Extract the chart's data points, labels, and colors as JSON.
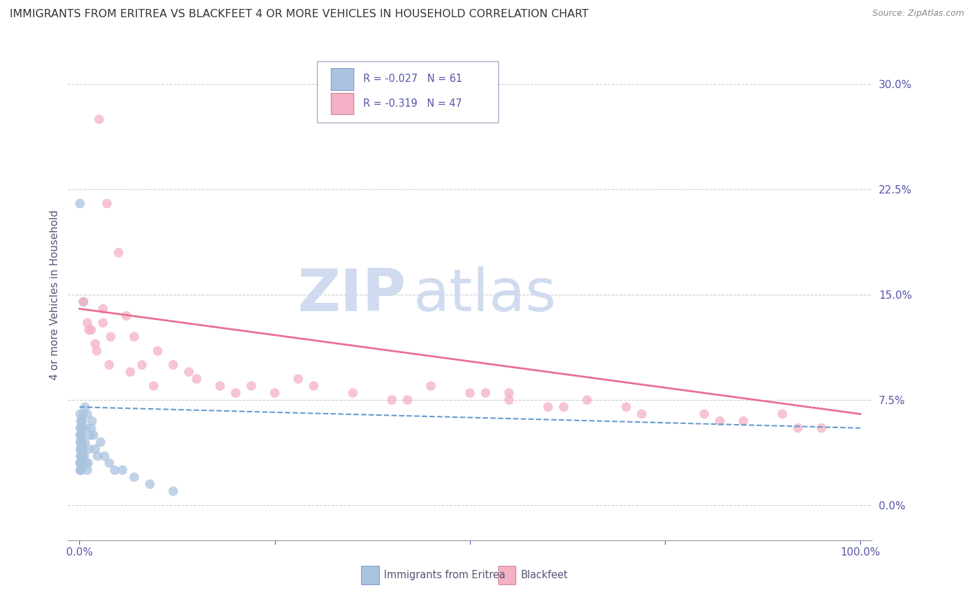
{
  "title": "IMMIGRANTS FROM ERITREA VS BLACKFEET 4 OR MORE VEHICLES IN HOUSEHOLD CORRELATION CHART",
  "source": "Source: ZipAtlas.com",
  "ylabel": "4 or more Vehicles in Household",
  "yticks": [
    0.0,
    7.5,
    15.0,
    22.5,
    30.0
  ],
  "xticks": [
    0,
    25,
    50,
    75,
    100
  ],
  "xtick_labels_edge": [
    "0.0%",
    "100.0%"
  ],
  "ytick_labels": [
    "0.0%",
    "7.5%",
    "15.0%",
    "22.5%",
    "30.0%"
  ],
  "legend_label1": "Immigrants from Eritrea",
  "legend_label2": "Blackfeet",
  "r1": -0.027,
  "n1": 61,
  "r2": -0.319,
  "n2": 47,
  "color1": "#aac4e0",
  "color2": "#f4b0c4",
  "line_color1": "#6699cc",
  "line_color2": "#e87090",
  "tick_color": "#5555aa",
  "label_color": "#555577",
  "watermark_color": "#ccd8ee",
  "grid_color": "#cccccc",
  "eritrea_x": [
    0.05,
    0.07,
    0.08,
    0.09,
    0.1,
    0.1,
    0.11,
    0.12,
    0.13,
    0.14,
    0.15,
    0.15,
    0.16,
    0.17,
    0.18,
    0.19,
    0.2,
    0.22,
    0.23,
    0.25,
    0.27,
    0.3,
    0.33,
    0.35,
    0.4,
    0.45,
    0.5,
    0.55,
    0.6,
    0.7,
    0.8,
    0.9,
    1.0,
    1.1,
    1.2,
    1.4,
    1.6,
    1.8,
    2.0,
    2.3,
    2.7,
    3.2,
    3.8,
    4.5,
    5.5,
    7.0,
    9.0,
    12.0,
    0.06,
    0.08,
    0.1,
    0.13,
    0.15,
    0.18,
    0.22,
    0.28,
    0.35,
    0.5,
    0.7,
    1.0,
    1.5
  ],
  "eritrea_y": [
    21.5,
    6.5,
    5.0,
    4.5,
    4.0,
    5.5,
    3.0,
    2.5,
    3.5,
    4.0,
    5.0,
    6.0,
    5.5,
    4.5,
    3.5,
    3.0,
    2.5,
    4.0,
    3.5,
    5.0,
    4.5,
    6.0,
    5.5,
    4.0,
    3.5,
    4.0,
    14.5,
    3.0,
    3.5,
    4.5,
    5.5,
    3.0,
    2.5,
    3.0,
    4.0,
    5.0,
    6.0,
    5.0,
    4.0,
    3.5,
    4.5,
    3.5,
    3.0,
    2.5,
    2.5,
    2.0,
    1.5,
    1.0,
    3.0,
    2.5,
    3.0,
    3.5,
    4.0,
    5.0,
    4.5,
    5.5,
    6.0,
    6.5,
    7.0,
    6.5,
    5.5
  ],
  "blackfeet_x": [
    0.5,
    1.0,
    1.5,
    2.0,
    2.5,
    3.0,
    3.5,
    4.0,
    5.0,
    6.0,
    7.0,
    8.0,
    10.0,
    12.0,
    15.0,
    18.0,
    22.0,
    28.0,
    35.0,
    40.0,
    45.0,
    50.0,
    55.0,
    60.0,
    65.0,
    70.0,
    80.0,
    85.0,
    90.0,
    95.0,
    1.2,
    2.2,
    3.8,
    6.5,
    9.5,
    14.0,
    20.0,
    30.0,
    42.0,
    52.0,
    62.0,
    72.0,
    82.0,
    92.0,
    3.0,
    25.0,
    55.0
  ],
  "blackfeet_y": [
    14.5,
    13.0,
    12.5,
    11.5,
    27.5,
    13.0,
    21.5,
    12.0,
    18.0,
    13.5,
    12.0,
    10.0,
    11.0,
    10.0,
    9.0,
    8.5,
    8.5,
    9.0,
    8.0,
    7.5,
    8.5,
    8.0,
    8.0,
    7.0,
    7.5,
    7.0,
    6.5,
    6.0,
    6.5,
    5.5,
    12.5,
    11.0,
    10.0,
    9.5,
    8.5,
    9.5,
    8.0,
    8.5,
    7.5,
    8.0,
    7.0,
    6.5,
    6.0,
    5.5,
    14.0,
    8.0,
    7.5
  ],
  "eritrea_trendline": [
    7.0,
    5.5
  ],
  "blackfeet_trendline": [
    14.0,
    6.5
  ]
}
